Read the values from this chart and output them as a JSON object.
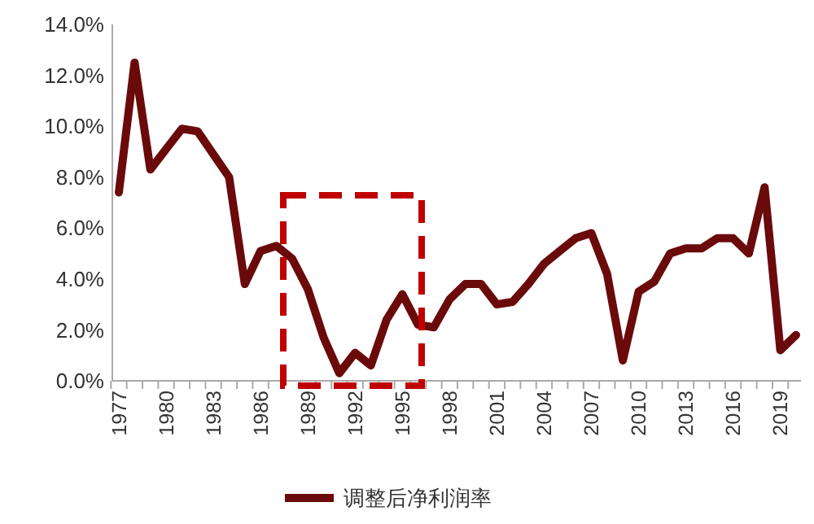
{
  "chart_data": {
    "type": "line",
    "categories": [
      "1977",
      null,
      null,
      "1980",
      null,
      null,
      "1983",
      null,
      null,
      "1986",
      null,
      null,
      "1989",
      null,
      null,
      "1992",
      null,
      null,
      "1995",
      null,
      null,
      "1998",
      null,
      null,
      "2001",
      null,
      null,
      "2004",
      null,
      null,
      "2007",
      null,
      null,
      "2010",
      null,
      null,
      "2013",
      null,
      null,
      "2016",
      null,
      null,
      "2019",
      null
    ],
    "series": [
      {
        "name": "调整后净利润率",
        "color": "#6b0a0a",
        "values": [
          7.4,
          12.5,
          8.3,
          9.1,
          9.9,
          9.8,
          8.9,
          8.0,
          3.8,
          5.1,
          5.3,
          4.8,
          3.6,
          1.7,
          0.3,
          1.1,
          0.6,
          2.4,
          3.4,
          2.2,
          2.1,
          3.2,
          3.8,
          3.8,
          3.0,
          3.1,
          3.8,
          4.6,
          5.1,
          5.6,
          5.8,
          4.2,
          0.8,
          3.5,
          3.9,
          5.0,
          5.2,
          5.2,
          5.6,
          5.6,
          5.0,
          7.6,
          1.2,
          1.8
        ]
      }
    ],
    "ylim": [
      0,
      14
    ],
    "yticks": [
      {
        "value": 0,
        "label": "0.0%"
      },
      {
        "value": 2,
        "label": "2.0%"
      },
      {
        "value": 4,
        "label": "4.0%"
      },
      {
        "value": 6,
        "label": "6.0%"
      },
      {
        "value": 8,
        "label": "8.0%"
      },
      {
        "value": 10,
        "label": "10.0%"
      },
      {
        "value": 12,
        "label": "12.0%"
      },
      {
        "value": 14,
        "label": "14.0%"
      }
    ],
    "grid": false,
    "legend": "bottom",
    "marker": "none",
    "line_style": "solid"
  }
}
